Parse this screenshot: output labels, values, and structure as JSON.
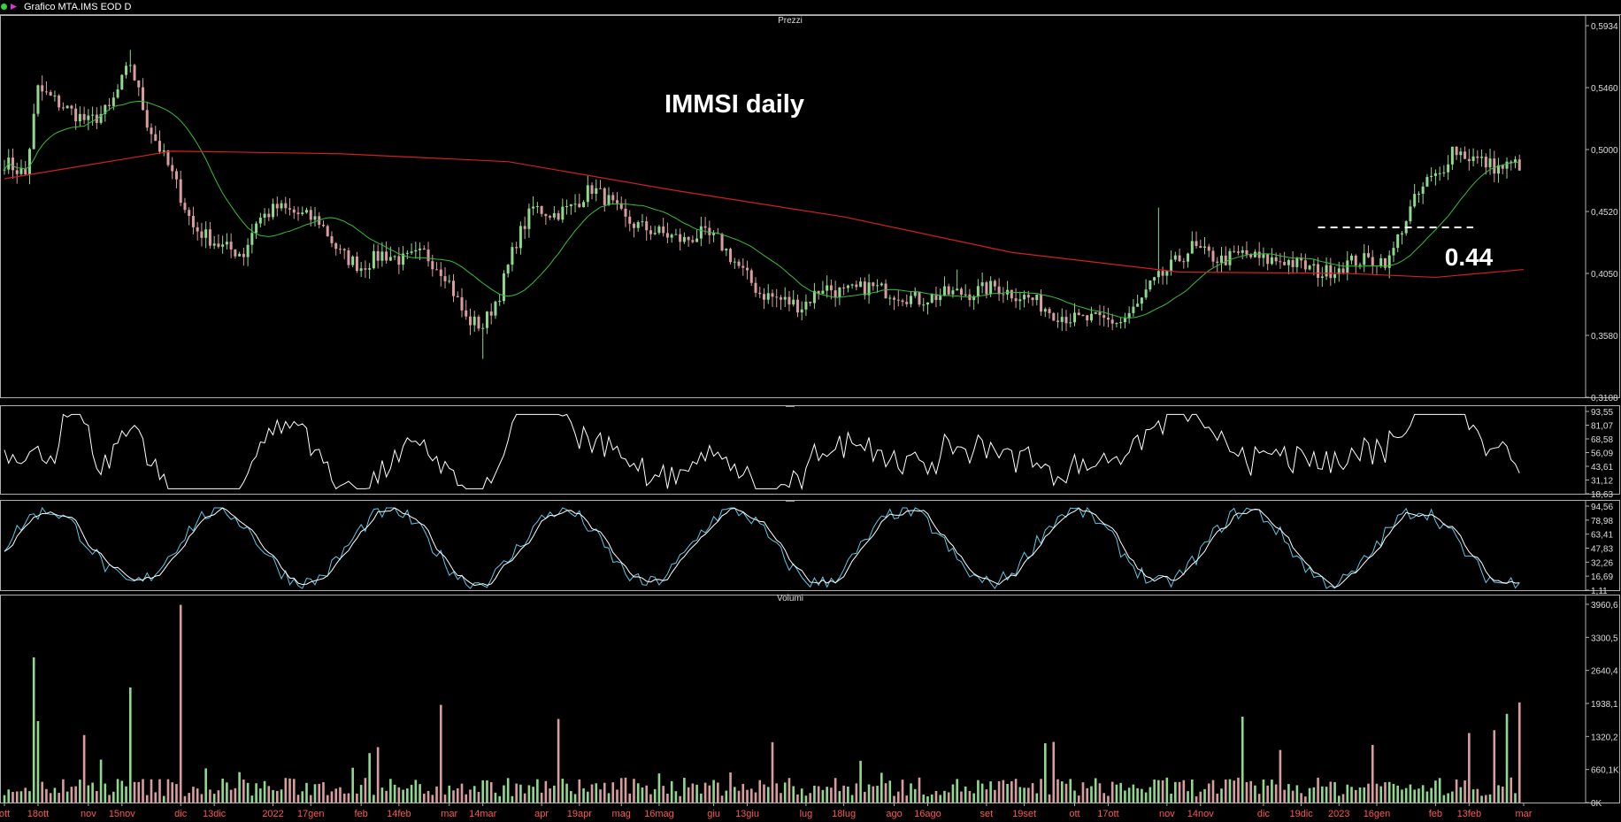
{
  "window": {
    "title": "Grafico MTA.IMS EOD D"
  },
  "panels": {
    "price": "Prezzi",
    "osc1": "—",
    "osc2": "—",
    "volume": "Volumi"
  },
  "annotations": {
    "headline": "IMMSI daily",
    "level_label": "0.44"
  },
  "colors": {
    "up": "#8fd98f",
    "down": "#d99da0",
    "sma_short": "#35c035",
    "sma_long": "#d22020",
    "oscillator": "#ffffff",
    "stoch_fast": "#5ec8e6",
    "stoch_slow": "#ffffff",
    "x_labels": "#ff5555",
    "panel_border": "#b0b0b0"
  },
  "chart_data": {
    "type": "candlestick",
    "x_axis": {
      "labels": [
        "ott",
        "18ott",
        "nov",
        "15nov",
        "dic",
        "13dic",
        "2022",
        "17gen",
        "feb",
        "14feb",
        "mar",
        "14mar",
        "apr",
        "19apr",
        "mag",
        "16mag",
        "giu",
        "13giu",
        "lug",
        "18lug",
        "ago",
        "16ago",
        "set",
        "19set",
        "ott",
        "17ott",
        "nov",
        "14nov",
        "dic",
        "19dic",
        "2023",
        "16gen",
        "feb",
        "13feb",
        "mar"
      ],
      "bar_index": [
        0,
        8,
        20,
        28,
        42,
        50,
        64,
        73,
        85,
        94,
        106,
        114,
        128,
        137,
        147,
        156,
        169,
        177,
        191,
        200,
        212,
        220,
        234,
        243,
        255,
        263,
        277,
        285,
        300,
        309,
        318,
        327,
        341,
        349,
        362
      ],
      "total_bars": 362
    },
    "price": {
      "ylim": [
        0.3108,
        0.5934
      ],
      "ticks": [
        "0,5934",
        "0,5460",
        "0,5000",
        "0,4520",
        "0,4050",
        "0,3580",
        "0,3108"
      ],
      "anchors_close": [
        [
          0,
          0.49
        ],
        [
          5,
          0.48
        ],
        [
          8,
          0.545
        ],
        [
          15,
          0.53
        ],
        [
          20,
          0.52
        ],
        [
          25,
          0.53
        ],
        [
          30,
          0.565
        ],
        [
          34,
          0.52
        ],
        [
          40,
          0.48
        ],
        [
          45,
          0.44
        ],
        [
          52,
          0.425
        ],
        [
          57,
          0.42
        ],
        [
          60,
          0.445
        ],
        [
          65,
          0.455
        ],
        [
          70,
          0.45
        ],
        [
          75,
          0.445
        ],
        [
          80,
          0.42
        ],
        [
          85,
          0.41
        ],
        [
          90,
          0.42
        ],
        [
          95,
          0.415
        ],
        [
          100,
          0.42
        ],
        [
          105,
          0.405
        ],
        [
          110,
          0.37
        ],
        [
          114,
          0.365
        ],
        [
          118,
          0.39
        ],
        [
          122,
          0.43
        ],
        [
          126,
          0.455
        ],
        [
          131,
          0.45
        ],
        [
          135,
          0.455
        ],
        [
          140,
          0.47
        ],
        [
          144,
          0.46
        ],
        [
          148,
          0.445
        ],
        [
          152,
          0.44
        ],
        [
          157,
          0.435
        ],
        [
          162,
          0.43
        ],
        [
          166,
          0.435
        ],
        [
          170,
          0.43
        ],
        [
          175,
          0.41
        ],
        [
          180,
          0.39
        ],
        [
          185,
          0.385
        ],
        [
          190,
          0.38
        ],
        [
          195,
          0.395
        ],
        [
          200,
          0.39
        ],
        [
          206,
          0.395
        ],
        [
          212,
          0.39
        ],
        [
          218,
          0.385
        ],
        [
          225,
          0.39
        ],
        [
          230,
          0.39
        ],
        [
          236,
          0.395
        ],
        [
          240,
          0.39
        ],
        [
          245,
          0.385
        ],
        [
          250,
          0.375
        ],
        [
          255,
          0.37
        ],
        [
          260,
          0.37
        ],
        [
          266,
          0.368
        ],
        [
          270,
          0.38
        ],
        [
          273,
          0.395
        ],
        [
          278,
          0.41
        ],
        [
          283,
          0.425
        ],
        [
          286,
          0.42
        ],
        [
          290,
          0.415
        ],
        [
          295,
          0.42
        ],
        [
          300,
          0.415
        ],
        [
          305,
          0.415
        ],
        [
          310,
          0.41
        ],
        [
          314,
          0.405
        ],
        [
          318,
          0.41
        ],
        [
          322,
          0.415
        ],
        [
          326,
          0.415
        ],
        [
          330,
          0.415
        ],
        [
          333,
          0.44
        ],
        [
          336,
          0.46
        ],
        [
          339,
          0.475
        ],
        [
          342,
          0.48
        ],
        [
          345,
          0.5
        ],
        [
          348,
          0.495
        ],
        [
          352,
          0.49
        ],
        [
          356,
          0.485
        ],
        [
          360,
          0.488
        ]
      ],
      "spikes_high": [
        [
          30,
          0.575
        ],
        [
          114,
          0.34
        ],
        [
          145,
          0.465
        ],
        [
          227,
          0.408
        ],
        [
          275,
          0.455
        ]
      ],
      "horizontal_level": 0.44,
      "sma_short_period": 20,
      "sma_long_period": 200
    },
    "oscillator_1": {
      "ticks": [
        "93,55",
        "81,07",
        "68,58",
        "56,09",
        "43,61",
        "31,12",
        "18,63"
      ],
      "ylim": [
        15,
        97
      ]
    },
    "oscillator_2": {
      "ticks": [
        "94,56",
        "78,98",
        "63,41",
        "47,83",
        "32,26",
        "16,69",
        "1,11"
      ],
      "ylim": [
        0,
        97
      ]
    },
    "volume": {
      "ticks": [
        "3960,6",
        "3300,5",
        "2640,4",
        "1938,1",
        "1320,2",
        "660,1K",
        "0K"
      ],
      "ylim": [
        0,
        3960
      ]
    }
  }
}
